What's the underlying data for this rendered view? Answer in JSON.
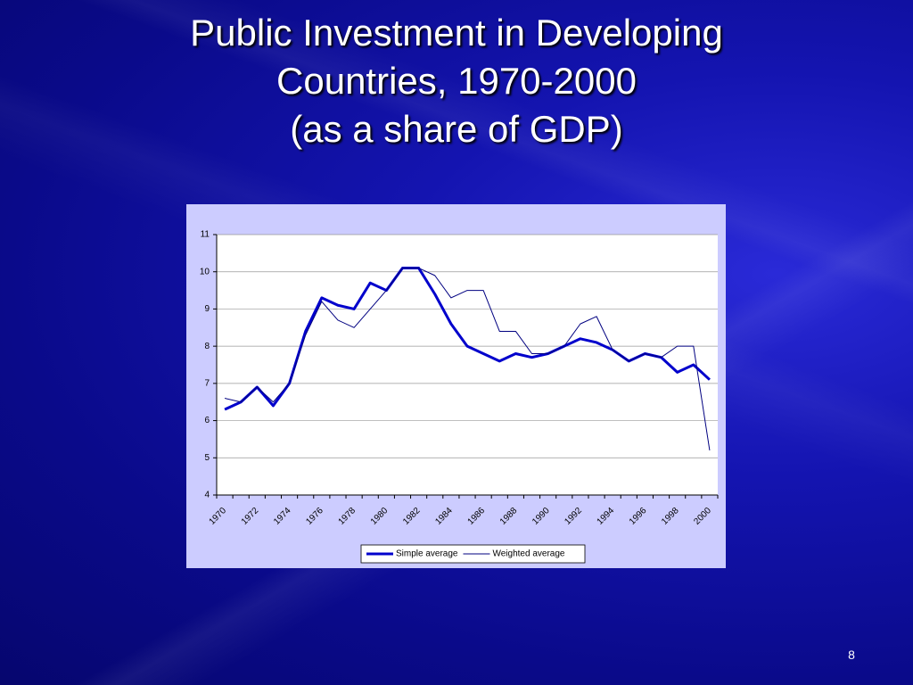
{
  "chart_data": {
    "type": "line",
    "title": [
      "Public Investment in Developing",
      "Countries, 1970-2000",
      "(as a share of GDP)"
    ],
    "categories": [
      1970,
      null,
      1972,
      null,
      1974,
      null,
      1976,
      null,
      1978,
      null,
      1980,
      null,
      1982,
      null,
      1984,
      null,
      1986,
      null,
      1988,
      null,
      1990,
      null,
      1992,
      null,
      1994,
      null,
      1996,
      null,
      1998,
      null,
      2000
    ],
    "series": [
      {
        "name": "Simple average",
        "color": "#0000cc",
        "values": [
          6.3,
          6.5,
          6.9,
          6.4,
          7.0,
          8.4,
          9.3,
          9.1,
          9.0,
          9.7,
          9.5,
          10.1,
          10.1,
          9.4,
          8.6,
          8.0,
          7.8,
          7.6,
          7.8,
          7.7,
          7.8,
          8.0,
          8.2,
          8.1,
          7.9,
          7.6,
          7.8,
          7.7,
          7.3,
          7.5,
          7.1
        ]
      },
      {
        "name": "Weighted average",
        "color": "#000080",
        "values": [
          6.6,
          6.5,
          6.9,
          6.5,
          7.0,
          8.3,
          9.2,
          8.7,
          8.5,
          9.0,
          9.5,
          10.1,
          10.1,
          9.9,
          9.3,
          9.5,
          9.5,
          8.4,
          8.4,
          7.8,
          7.8,
          8.0,
          8.6,
          8.8,
          7.9,
          7.6,
          7.8,
          7.7,
          8.0,
          8.0,
          5.2
        ]
      }
    ],
    "ylim": [
      4,
      11
    ],
    "yticks": [
      4,
      5,
      6,
      7,
      8,
      9,
      10,
      11
    ],
    "grid": true,
    "legend": "bottom"
  },
  "slide_number": 8
}
